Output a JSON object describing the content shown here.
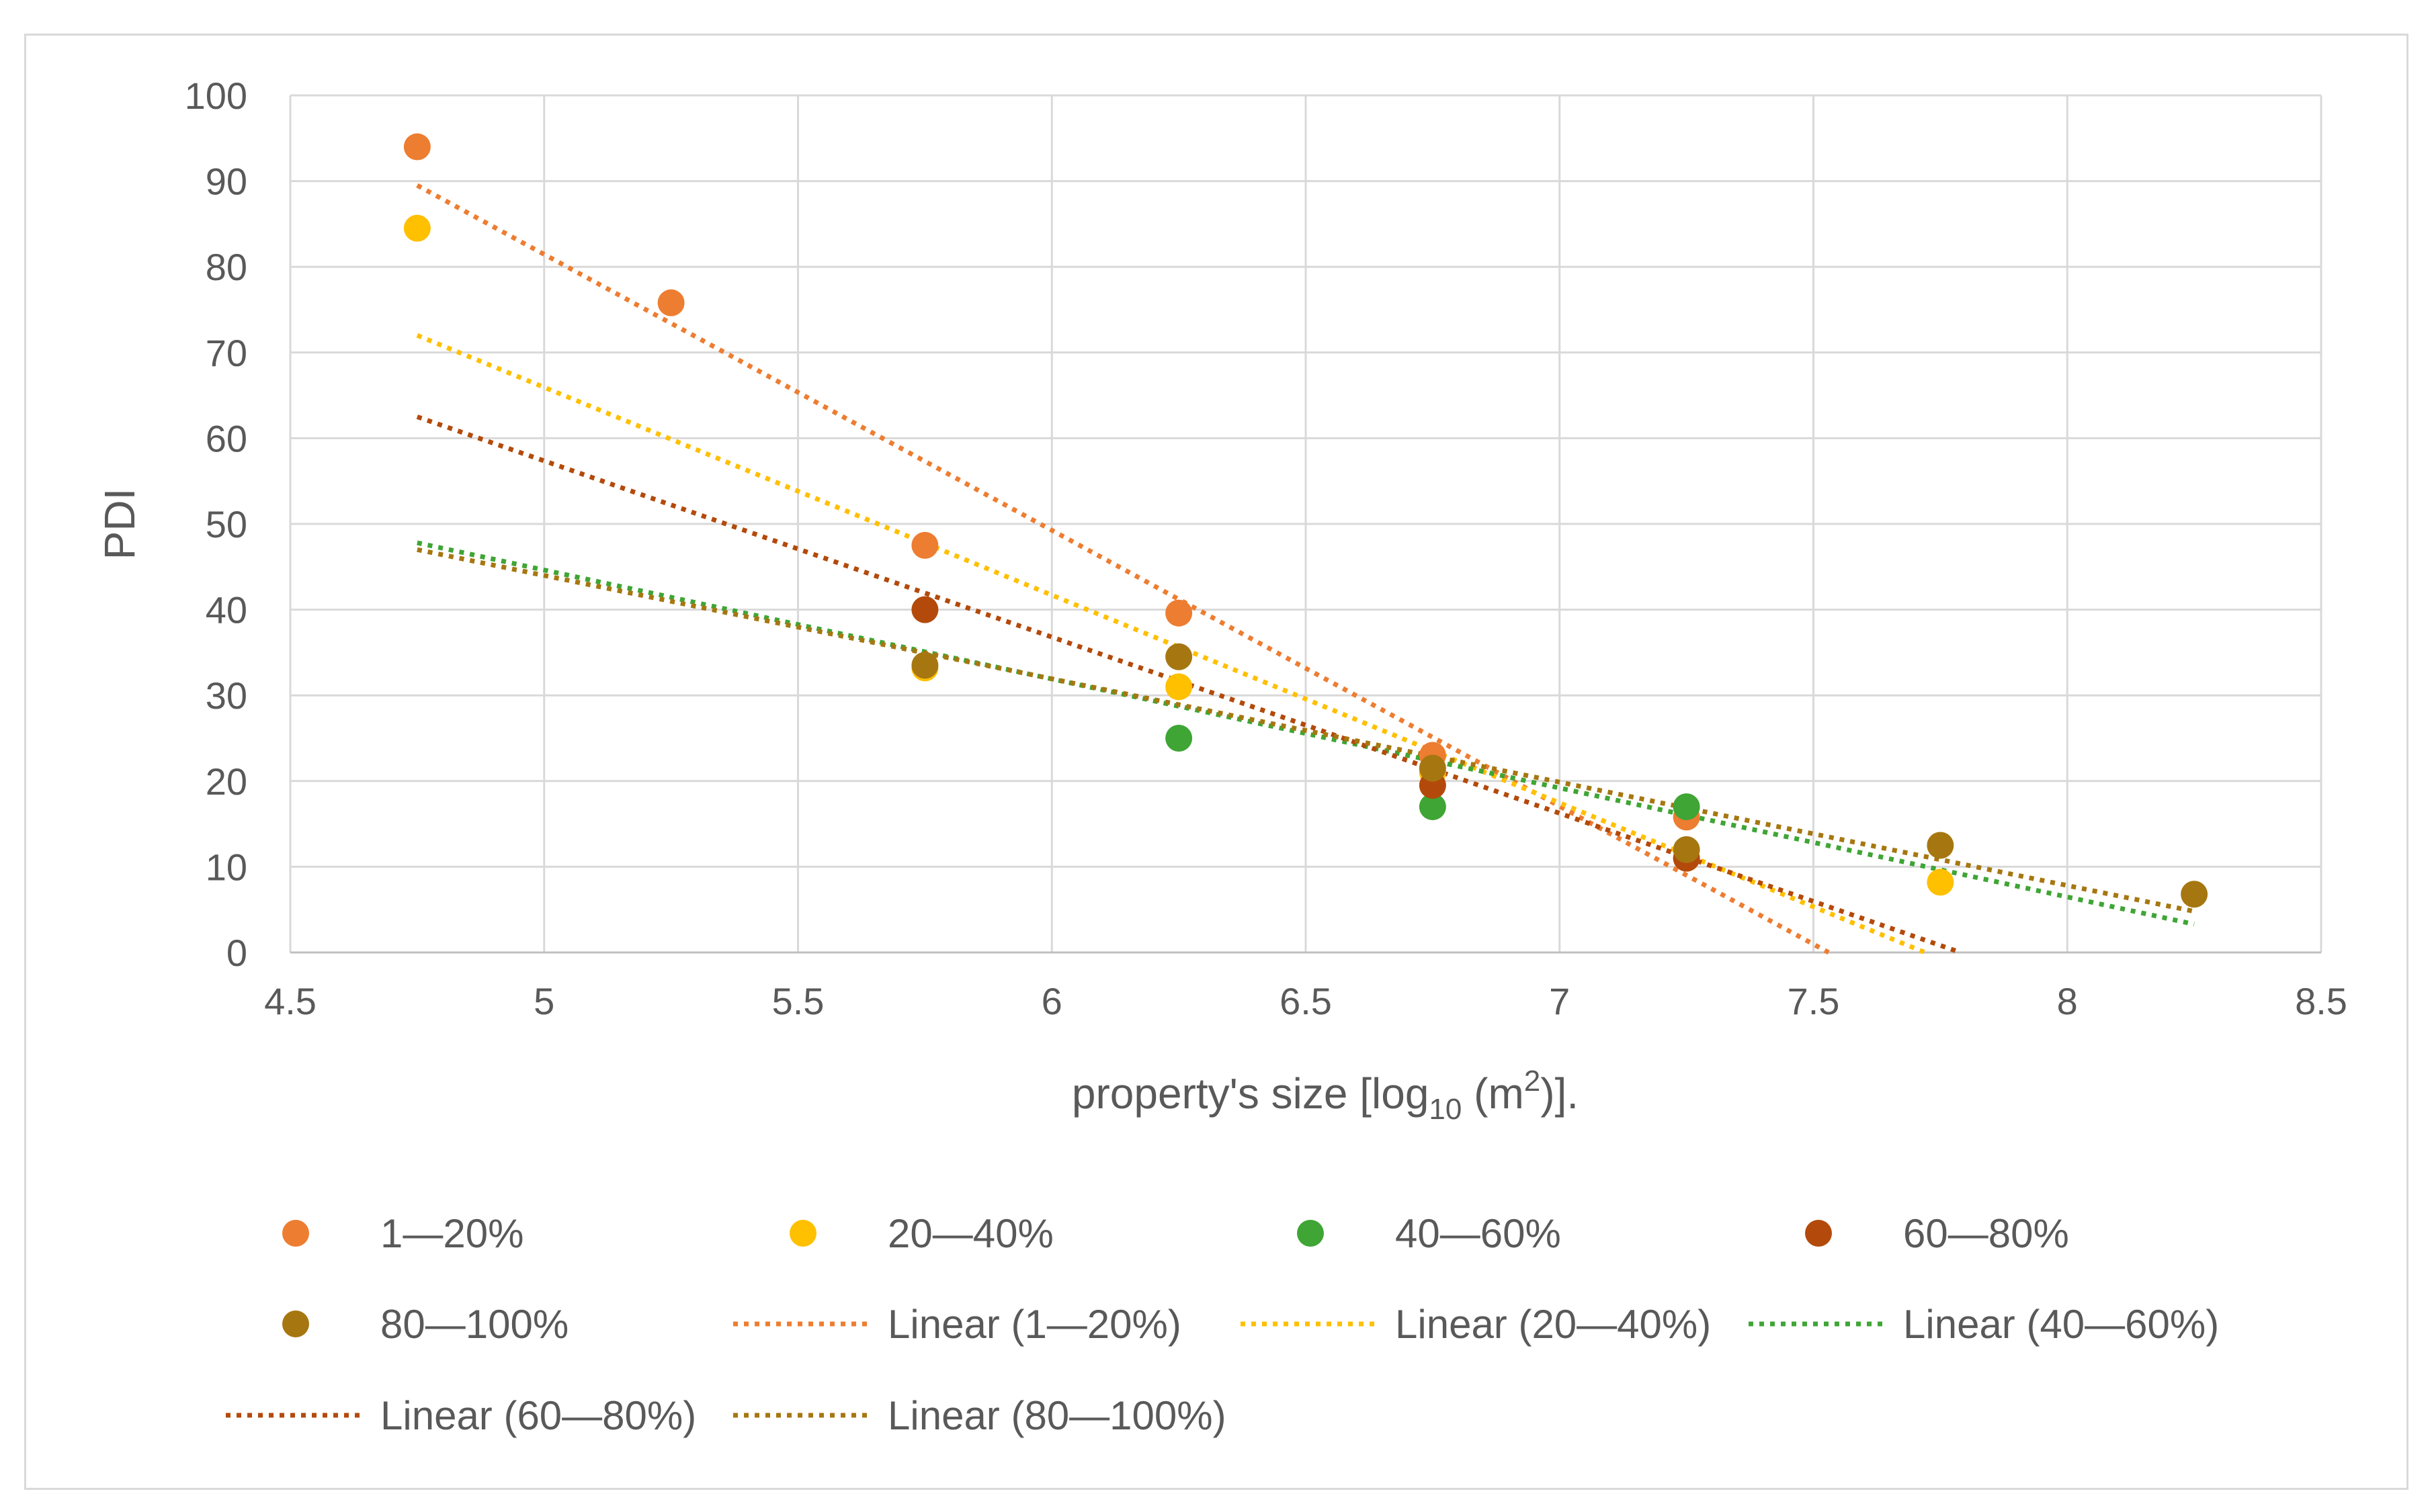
{
  "chart_data": {
    "type": "scatter",
    "title": "",
    "xlabel": {
      "prefix": "property's size [log",
      "sub": "10",
      "middle": " (m",
      "sup": "2",
      "suffix": ")]."
    },
    "ylabel": "PDI",
    "xlim": [
      4.5,
      8.5
    ],
    "ylim": [
      0,
      100
    ],
    "xticks": [
      4.5,
      5,
      5.5,
      6,
      6.5,
      7,
      7.5,
      8,
      8.5
    ],
    "xtick_labels": [
      "4.5",
      "5",
      "5.5",
      "6",
      "6.5",
      "7",
      "7.5",
      "8",
      "8.5"
    ],
    "yticks": [
      0,
      10,
      20,
      30,
      40,
      50,
      60,
      70,
      80,
      90,
      100
    ],
    "ytick_labels": [
      "0",
      "10",
      "20",
      "30",
      "40",
      "50",
      "60",
      "70",
      "80",
      "90",
      "100"
    ],
    "grid": true,
    "legend_position": "bottom",
    "series": [
      {
        "name": "1—20%",
        "color": "#ED7D31",
        "x": [
          4.75,
          5.25,
          5.75,
          6.25,
          6.75,
          7.25
        ],
        "y": [
          94,
          75.8,
          47.5,
          39.6,
          23,
          15.8
        ],
        "trend": {
          "label": "Linear (1—20%)",
          "x": [
            4.75,
            7.53
          ],
          "y": [
            89.5,
            0
          ]
        }
      },
      {
        "name": "20—40%",
        "color": "#FFC000",
        "x": [
          4.75,
          5.75,
          6.25,
          6.75,
          7.25,
          7.75
        ],
        "y": [
          84.5,
          33.2,
          31,
          21,
          11,
          8.2
        ],
        "trend": {
          "label": "Linear (20—40%)",
          "x": [
            4.75,
            7.72
          ],
          "y": [
            72,
            0
          ]
        }
      },
      {
        "name": "40—60%",
        "color": "#3FA535",
        "x": [
          6.25,
          6.75,
          7.25
        ],
        "y": [
          25,
          17,
          17
        ],
        "trend": {
          "label": "Linear (40—60%)",
          "x": [
            4.75,
            8.25
          ],
          "y": [
            47.8,
            3.3
          ]
        }
      },
      {
        "name": "60—80%",
        "color": "#B34A0B",
        "x": [
          5.75,
          6.75,
          7.25
        ],
        "y": [
          40,
          19.5,
          11
        ],
        "trend": {
          "label": "Linear (60—80%)",
          "x": [
            4.75,
            7.79
          ],
          "y": [
            62.5,
            0
          ]
        }
      },
      {
        "name": "80—100%",
        "color": "#A67711",
        "x": [
          5.75,
          6.25,
          6.75,
          7.25,
          7.75,
          8.25
        ],
        "y": [
          33.5,
          34.5,
          21.5,
          12,
          12.5,
          6.8
        ],
        "trend": {
          "label": "Linear (80—100%)",
          "x": [
            4.75,
            8.25
          ],
          "y": [
            47,
            4.8
          ]
        }
      }
    ]
  }
}
